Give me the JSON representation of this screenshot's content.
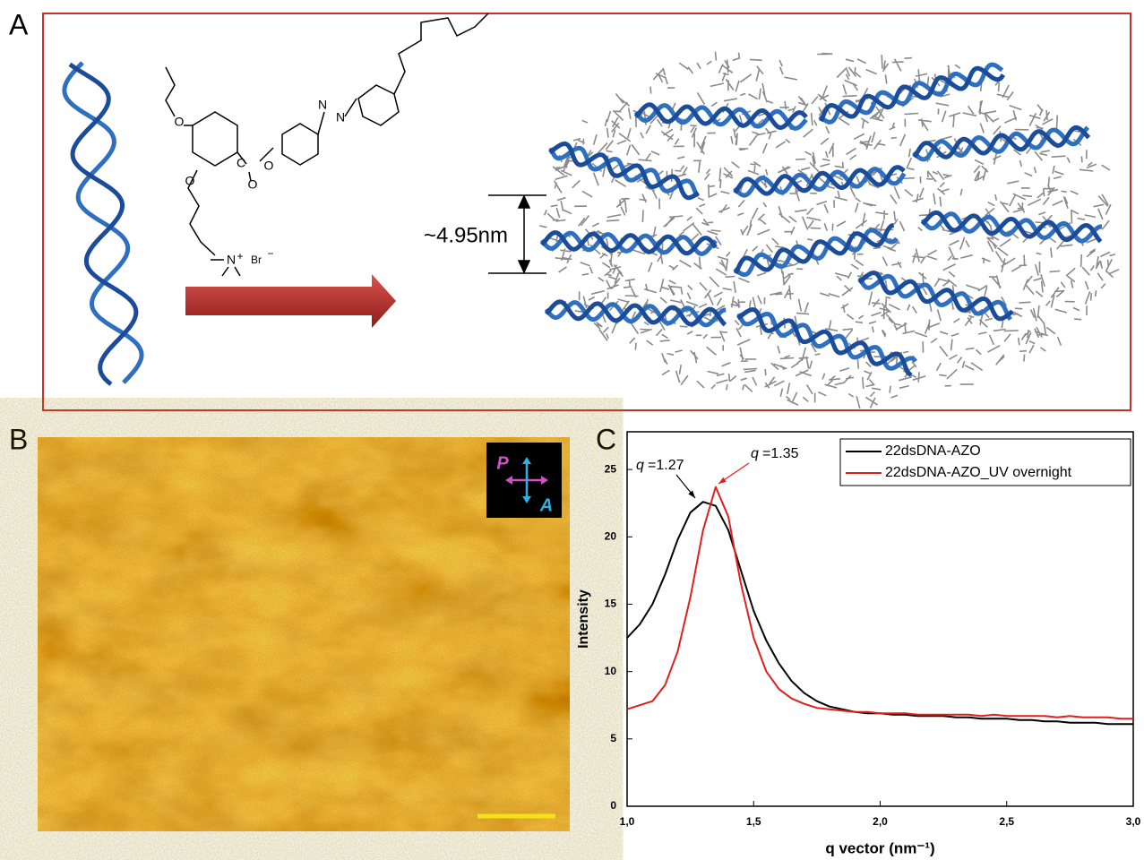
{
  "panel_labels": [
    "A",
    "B",
    "C"
  ],
  "panel_a": {
    "atoms": [
      "O",
      "O",
      "C",
      "O",
      "O",
      "N",
      "N",
      "N",
      "+",
      "Br",
      "−"
    ],
    "spacing": "~4.95nm"
  },
  "panel_b": {
    "polarizer": "P",
    "analyzer": "A"
  },
  "chart_data": {
    "type": "line",
    "xlabel": "q vector (nm⁻¹)",
    "ylabel": "Intensity",
    "x": [
      1.0,
      1.05,
      1.1,
      1.15,
      1.2,
      1.25,
      1.3,
      1.35,
      1.4,
      1.45,
      1.5,
      1.55,
      1.6,
      1.65,
      1.7,
      1.75,
      1.8,
      1.85,
      1.9,
      1.95,
      2.0,
      2.05,
      2.1,
      2.15,
      2.2,
      2.25,
      2.3,
      2.35,
      2.4,
      2.45,
      2.5,
      2.55,
      2.6,
      2.65,
      2.7,
      2.75,
      2.8,
      2.85,
      2.9,
      2.95,
      3.0
    ],
    "series": [
      {
        "name": "22dsDNA-AZO",
        "color": "#000000",
        "values": [
          12.5,
          13.5,
          15,
          17.2,
          19.8,
          21.8,
          22.6,
          22.3,
          20.5,
          17.5,
          14.5,
          12.3,
          10.6,
          9.3,
          8.4,
          7.8,
          7.4,
          7.2,
          7.0,
          6.9,
          6.9,
          6.8,
          6.8,
          6.7,
          6.7,
          6.7,
          6.6,
          6.6,
          6.5,
          6.5,
          6.5,
          6.4,
          6.4,
          6.3,
          6.3,
          6.2,
          6.2,
          6.2,
          6.1,
          6.1,
          6.1
        ]
      },
      {
        "name": "22dsDNA-AZO_UV overnight",
        "color": "#e0201c",
        "values": [
          7.2,
          7.5,
          7.8,
          9.0,
          11.5,
          15.5,
          20.5,
          23.7,
          21.5,
          16.5,
          12.5,
          10.0,
          8.7,
          8.0,
          7.6,
          7.3,
          7.2,
          7.1,
          7.0,
          7.0,
          6.9,
          6.9,
          6.9,
          6.8,
          6.8,
          6.8,
          6.8,
          6.8,
          6.7,
          6.8,
          6.7,
          6.7,
          6.7,
          6.7,
          6.6,
          6.7,
          6.6,
          6.6,
          6.6,
          6.5,
          6.5
        ]
      }
    ],
    "annotations": [
      {
        "symbol": "q",
        "text": "=1.27"
      },
      {
        "symbol": "q",
        "text": "=1.35"
      }
    ],
    "xlim": [
      1.0,
      3.0
    ],
    "ylim": [
      0,
      27.8
    ],
    "xticks": [
      {
        "value": 1.0,
        "label": "1,0"
      },
      {
        "value": 1.5,
        "label": "1,5"
      },
      {
        "value": 2.0,
        "label": "2,0"
      },
      {
        "value": 2.5,
        "label": "2,5"
      },
      {
        "value": 3.0,
        "label": "3,0"
      }
    ],
    "yticks": [
      0,
      5,
      10,
      15,
      20,
      25
    ],
    "legend": "upper right"
  }
}
